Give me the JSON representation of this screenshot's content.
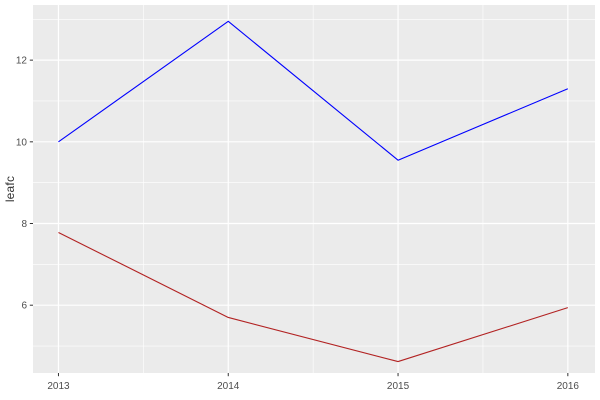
{
  "chart_data": {
    "type": "line",
    "title": "",
    "xlabel": "",
    "ylabel": "leafc",
    "x": [
      2013,
      2014,
      2015,
      2016
    ],
    "categories": [
      "2013",
      "2014",
      "2015",
      "2016"
    ],
    "series": [
      {
        "name": "blue-series",
        "color": "#0000FF",
        "values": [
          10.0,
          12.95,
          9.55,
          11.3
        ]
      },
      {
        "name": "red-series",
        "color": "#B22222",
        "values": [
          7.78,
          5.7,
          4.62,
          5.94
        ]
      }
    ],
    "y_ticks": [
      6,
      8,
      10,
      12
    ],
    "y_tick_labels": [
      "6",
      "8",
      "10",
      "12"
    ],
    "y_minor_ticks": [
      5,
      7,
      9,
      11,
      13
    ],
    "x_minor_ticks": [
      2013.5,
      2014.5,
      2015.5
    ],
    "xlim": [
      2012.85,
      2016.16
    ],
    "ylim": [
      4.34,
      13.35
    ],
    "grid": true,
    "legend": "none",
    "style": {
      "panel_bg": "#EBEBEB",
      "grid_color": "#FFFFFF",
      "tick_mark_color": "#333333",
      "tick_label_color": "#4D4D4D",
      "axis_title_color": "#333333",
      "figure_bg": "#FFFFFF"
    }
  }
}
